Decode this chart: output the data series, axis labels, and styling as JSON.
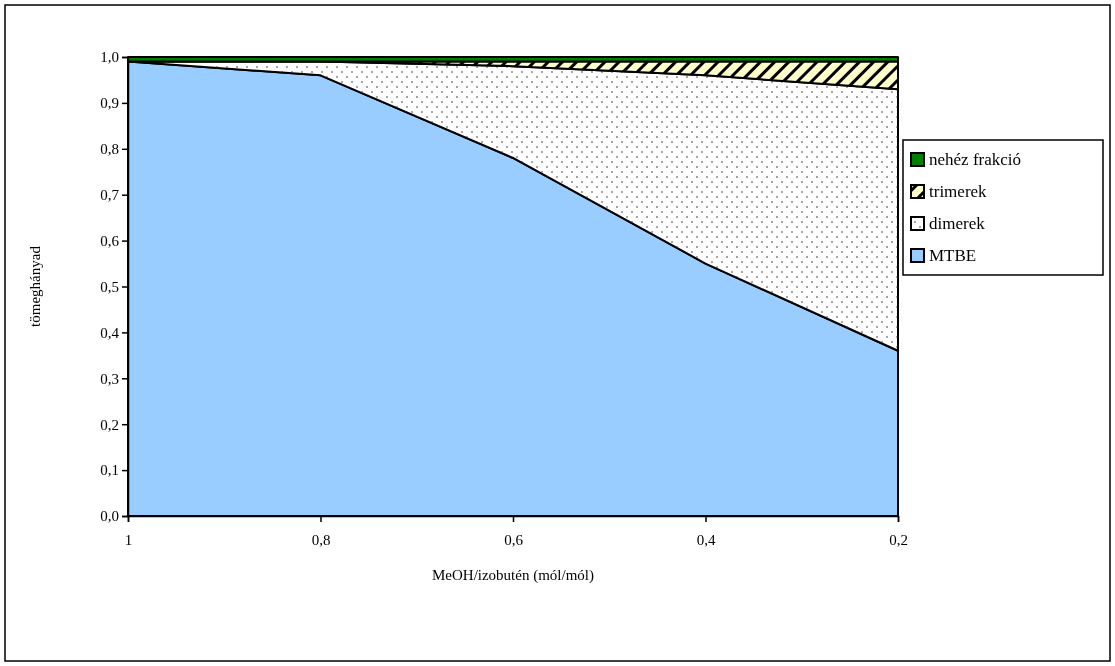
{
  "chart_data": {
    "type": "area",
    "stacked": true,
    "xlabel": "MeOH/izobutén (mól/mól)",
    "ylabel": "tömeghányad",
    "categories": [
      "1",
      "0,8",
      "0,6",
      "0,4",
      "0,2"
    ],
    "series": [
      {
        "name": "MTBE",
        "color": "#99ccff",
        "values": [
          0.99,
          0.96,
          0.78,
          0.55,
          0.36
        ]
      },
      {
        "name": "dimerek",
        "color": "#ffffff",
        "values": [
          0,
          0.03,
          0.2,
          0.41,
          0.57
        ]
      },
      {
        "name": "trimerek",
        "color": "#ffffcc",
        "values": [
          0,
          0,
          0.01,
          0.03,
          0.06
        ]
      },
      {
        "name": "nehéz frakció",
        "color": "#008000",
        "values": [
          0.01,
          0.01,
          0.01,
          0.01,
          0.01
        ]
      }
    ],
    "ylim": [
      0,
      1
    ],
    "yticks": [
      {
        "value": 0,
        "label": "0,0"
      },
      {
        "value": 0.1,
        "label": "0,1"
      },
      {
        "value": 0.2,
        "label": "0,2"
      },
      {
        "value": 0.3,
        "label": "0,3"
      },
      {
        "value": 0.4,
        "label": "0,4"
      },
      {
        "value": 0.5,
        "label": "0,5"
      },
      {
        "value": 0.6,
        "label": "0,6"
      },
      {
        "value": 0.7,
        "label": "0,7"
      },
      {
        "value": 0.8,
        "label": "0,8"
      },
      {
        "value": 0.9,
        "label": "0,9"
      },
      {
        "value": 1,
        "label": "1,0"
      }
    ],
    "legend": "right"
  }
}
